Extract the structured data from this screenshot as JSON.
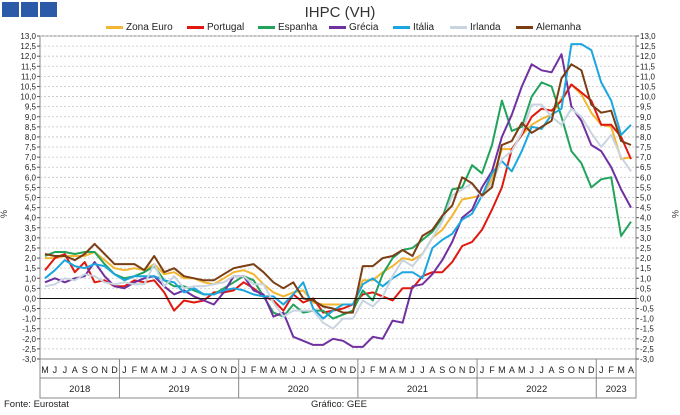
{
  "title": "IHPC (VH)",
  "source": "Fonte: Eurostat",
  "credit": "Gráfico: GEE",
  "chart_data": {
    "type": "line",
    "title": "IHPC (VH)",
    "ylabel_left": "%",
    "ylabel_right": "%",
    "ylim": [
      -3.0,
      13.0
    ],
    "yticks": [
      "13,0",
      "12,5",
      "12,0",
      "11,5",
      "11,0",
      "10,5",
      "10,0",
      "9,5",
      "9,0",
      "8,5",
      "8,0",
      "7,5",
      "7,0",
      "6,5",
      "6,0",
      "5,5",
      "5,0",
      "4,5",
      "4,0",
      "3,5",
      "3,0",
      "2,5",
      "2,0",
      "1,5",
      "1,0",
      "0,5",
      "0,0",
      "-0,5",
      "-1,0",
      "-1,5",
      "-2,0",
      "-2,5",
      "-3,0"
    ],
    "months": [
      "M",
      "J",
      "J",
      "A",
      "S",
      "O",
      "N",
      "D",
      "J",
      "F",
      "M",
      "A",
      "M",
      "J",
      "J",
      "A",
      "S",
      "O",
      "N",
      "D",
      "J",
      "F",
      "M",
      "A",
      "M",
      "J",
      "J",
      "A",
      "S",
      "O",
      "N",
      "D",
      "J",
      "F",
      "M",
      "A",
      "M",
      "J",
      "J",
      "A",
      "S",
      "O",
      "N",
      "D",
      "J",
      "F",
      "M",
      "A",
      "M",
      "J",
      "J",
      "A",
      "S",
      "O",
      "N",
      "D",
      "J",
      "F",
      "M",
      "A"
    ],
    "years": [
      {
        "label": "2018",
        "start": 0,
        "end": 7
      },
      {
        "label": "2019",
        "start": 8,
        "end": 19
      },
      {
        "label": "2020",
        "start": 20,
        "end": 31
      },
      {
        "label": "2021",
        "start": 32,
        "end": 43
      },
      {
        "label": "2022",
        "start": 44,
        "end": 55
      },
      {
        "label": "2023",
        "start": 56,
        "end": 59
      }
    ],
    "series": [
      {
        "name": "Zona Euro",
        "color": "#f2b632",
        "values": [
          2.0,
          2.0,
          2.1,
          2.1,
          2.1,
          2.3,
          1.9,
          1.5,
          1.4,
          1.5,
          1.4,
          1.7,
          1.2,
          1.3,
          1.0,
          1.0,
          0.8,
          0.7,
          1.0,
          1.3,
          1.4,
          1.2,
          0.7,
          0.3,
          0.1,
          0.3,
          0.4,
          -0.2,
          -0.3,
          -0.3,
          -0.3,
          -0.3,
          0.9,
          0.9,
          1.3,
          1.6,
          2.0,
          1.9,
          2.2,
          3.0,
          3.4,
          4.1,
          4.9,
          5.0,
          5.1,
          5.9,
          7.4,
          7.4,
          8.1,
          8.6,
          8.9,
          9.1,
          9.9,
          10.6,
          10.1,
          9.2,
          8.6,
          8.5,
          6.9,
          7.0
        ]
      },
      {
        "name": "Portugal",
        "color": "#e0180f",
        "values": [
          1.4,
          2.0,
          2.2,
          1.3,
          1.8,
          0.8,
          0.9,
          0.6,
          0.6,
          0.9,
          0.8,
          0.9,
          0.3,
          -0.6,
          -0.1,
          -0.2,
          -0.1,
          0.3,
          0.3,
          0.4,
          0.8,
          0.5,
          0.1,
          -0.1,
          -0.6,
          0.2,
          -0.2,
          0.0,
          -0.7,
          -0.6,
          -0.5,
          -0.3,
          0.2,
          0.3,
          0.1,
          -0.1,
          0.5,
          0.5,
          1.1,
          1.3,
          1.3,
          1.8,
          2.6,
          2.8,
          3.4,
          4.4,
          5.5,
          7.4,
          8.1,
          9.0,
          9.4,
          9.3,
          9.8,
          10.6,
          10.2,
          9.8,
          8.6,
          8.6,
          8.0,
          6.9
        ]
      },
      {
        "name": "Espanha",
        "color": "#21a35c",
        "values": [
          2.1,
          2.3,
          2.3,
          2.2,
          2.3,
          2.3,
          1.7,
          1.2,
          1.0,
          1.1,
          1.3,
          1.6,
          0.9,
          0.6,
          0.6,
          0.4,
          0.2,
          0.2,
          0.5,
          0.8,
          1.1,
          0.9,
          0.1,
          -0.7,
          -0.9,
          -0.3,
          -0.7,
          -0.6,
          -0.6,
          -1.0,
          -0.8,
          -0.6,
          0.4,
          -0.1,
          1.2,
          2.0,
          2.4,
          2.5,
          2.9,
          3.3,
          4.0,
          5.4,
          5.5,
          6.6,
          6.2,
          7.6,
          9.8,
          8.3,
          8.5,
          10.0,
          10.7,
          10.5,
          9.0,
          7.3,
          6.7,
          5.5,
          5.9,
          6.0,
          3.1,
          3.8
        ]
      },
      {
        "name": "Grécia",
        "color": "#7030a0",
        "values": [
          0.8,
          1.0,
          0.8,
          1.0,
          1.1,
          1.8,
          1.1,
          0.6,
          0.5,
          0.8,
          1.0,
          1.1,
          0.6,
          0.2,
          0.4,
          0.1,
          -0.1,
          -0.3,
          0.3,
          1.1,
          1.1,
          0.4,
          0.2,
          -0.9,
          -0.7,
          -1.9,
          -2.1,
          -2.3,
          -2.3,
          -2.0,
          -2.1,
          -2.4,
          -2.4,
          -1.9,
          -2.0,
          -1.1,
          -1.2,
          0.6,
          0.7,
          1.2,
          1.9,
          2.8,
          4.0,
          4.4,
          5.5,
          6.3,
          8.0,
          9.1,
          10.5,
          11.6,
          11.3,
          11.2,
          12.1,
          9.5,
          8.8,
          7.6,
          7.3,
          6.5,
          5.4,
          4.5
        ]
      },
      {
        "name": "Itália",
        "color": "#1ba6e0",
        "values": [
          1.0,
          1.4,
          1.9,
          1.6,
          1.5,
          1.7,
          1.6,
          1.2,
          0.9,
          1.1,
          1.1,
          1.1,
          0.9,
          0.8,
          0.3,
          0.5,
          0.2,
          0.2,
          0.4,
          0.5,
          0.4,
          0.2,
          0.1,
          0.1,
          -0.3,
          0.2,
          0.8,
          -0.5,
          -1.0,
          -0.6,
          -0.3,
          -0.3,
          0.7,
          1.0,
          0.6,
          1.0,
          1.3,
          1.3,
          1.0,
          2.5,
          2.9,
          3.2,
          3.9,
          4.2,
          5.1,
          6.2,
          6.8,
          6.3,
          7.3,
          8.5,
          8.4,
          9.1,
          9.4,
          12.6,
          12.6,
          12.3,
          10.7,
          9.8,
          8.1,
          8.6
        ]
      },
      {
        "name": "Irlanda",
        "color": "#c8d4e0",
        "values": [
          0.6,
          0.7,
          1.0,
          0.9,
          1.2,
          1.1,
          0.8,
          0.7,
          0.8,
          0.7,
          0.7,
          1.7,
          0.6,
          1.1,
          0.5,
          0.6,
          0.6,
          0.7,
          0.8,
          1.1,
          1.1,
          0.7,
          0.7,
          -0.2,
          -0.9,
          -0.6,
          -0.6,
          -0.6,
          -1.2,
          -1.5,
          -1.0,
          -1.0,
          -0.1,
          -0.4,
          0.1,
          1.1,
          1.9,
          1.6,
          2.2,
          3.0,
          3.8,
          5.1,
          5.4,
          5.7,
          5.0,
          5.7,
          6.9,
          7.3,
          8.2,
          9.6,
          9.6,
          9.0,
          8.6,
          9.4,
          9.0,
          8.2,
          7.5,
          8.1,
          7.0,
          6.3
        ]
      },
      {
        "name": "Alemanha",
        "color": "#7a3e12",
        "values": [
          2.2,
          2.1,
          2.1,
          1.9,
          2.2,
          2.7,
          2.2,
          1.7,
          1.7,
          1.7,
          1.4,
          2.1,
          1.3,
          1.5,
          1.1,
          1.0,
          0.9,
          0.9,
          1.2,
          1.5,
          1.6,
          1.7,
          1.3,
          0.8,
          0.5,
          0.8,
          0.0,
          -0.1,
          -0.4,
          -0.5,
          -0.7,
          -0.7,
          1.6,
          1.6,
          2.0,
          2.1,
          2.4,
          2.1,
          3.1,
          3.4,
          4.1,
          4.6,
          6.0,
          5.7,
          5.1,
          5.5,
          7.6,
          7.8,
          8.7,
          8.2,
          8.5,
          8.8,
          10.9,
          11.6,
          11.3,
          9.6,
          9.2,
          9.3,
          7.8,
          7.6
        ]
      }
    ]
  }
}
